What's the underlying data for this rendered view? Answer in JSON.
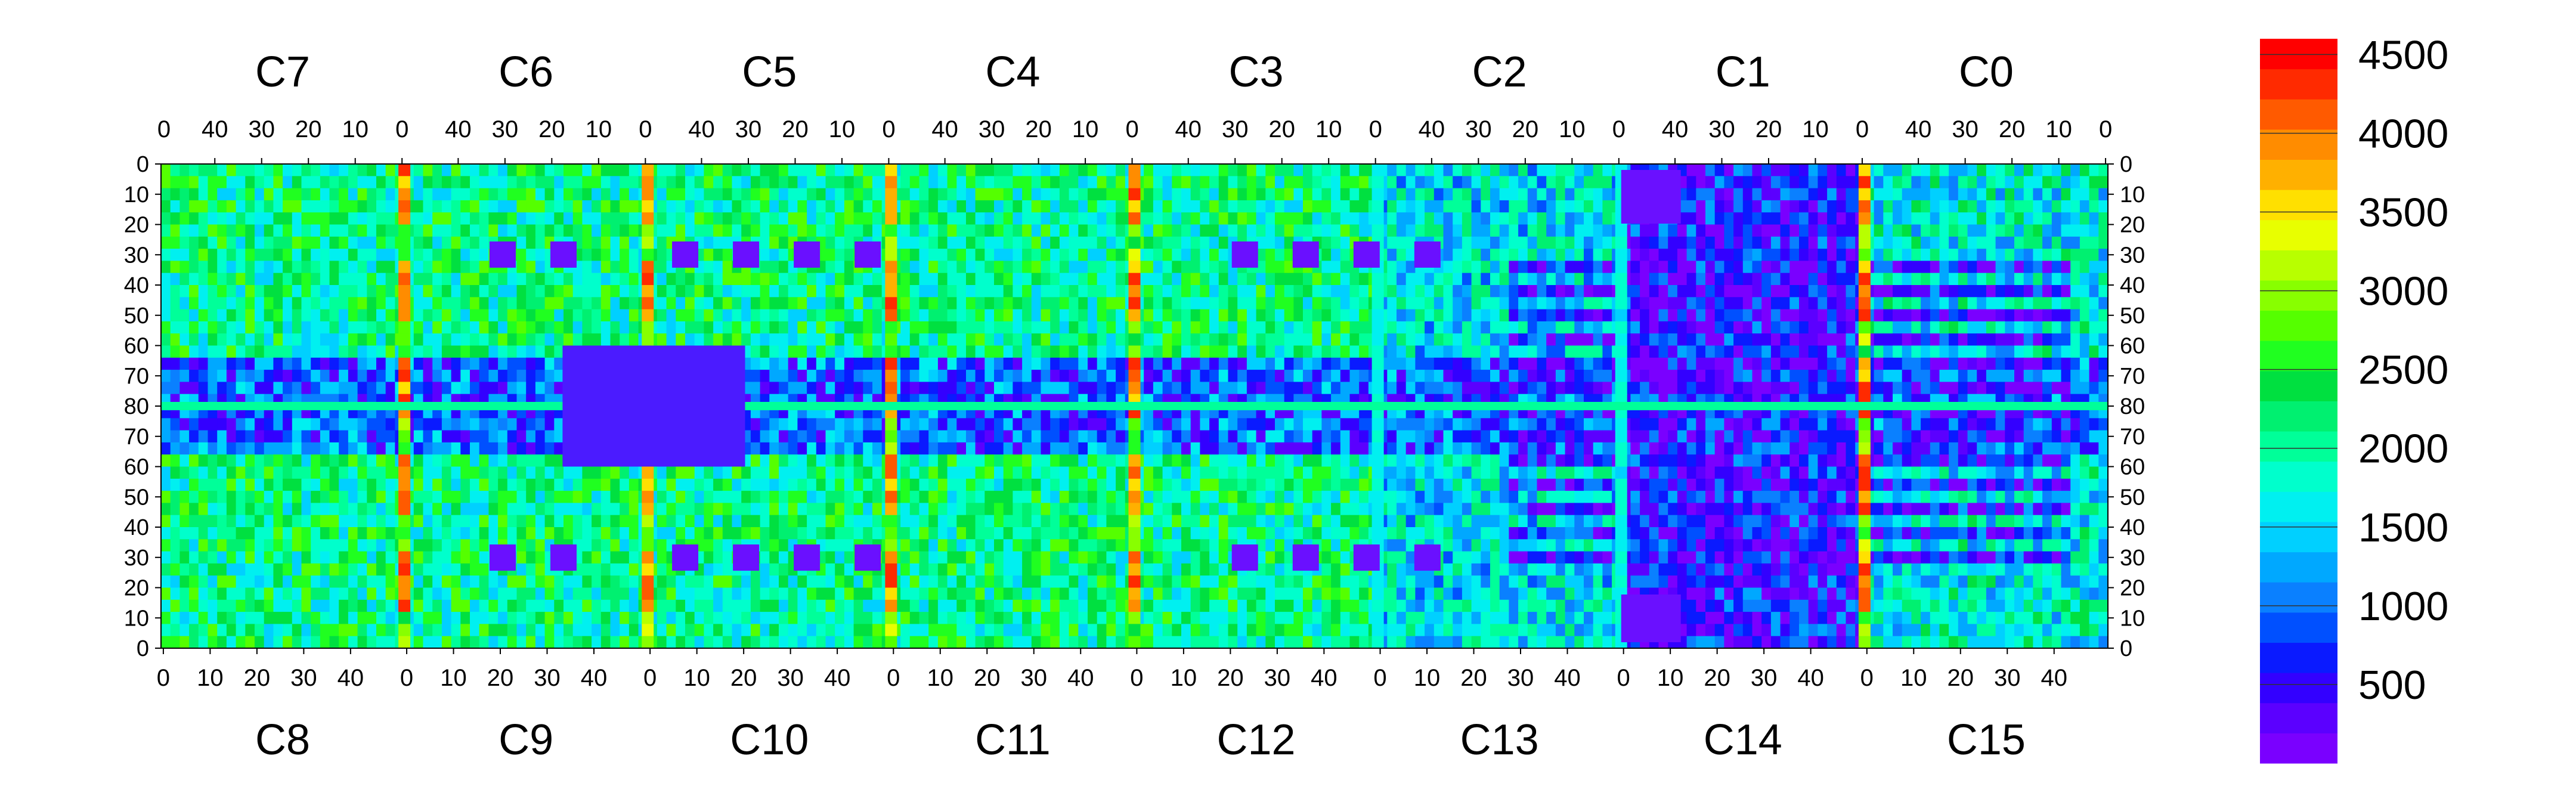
{
  "chart_data": {
    "type": "heatmap",
    "title": "",
    "xlabel": "",
    "ylabel": "",
    "top_chips": [
      "C7",
      "C6",
      "C5",
      "C4",
      "C3",
      "C2",
      "C1",
      "C0"
    ],
    "bottom_chips": [
      "C8",
      "C9",
      "C10",
      "C11",
      "C12",
      "C13",
      "C14",
      "C15"
    ],
    "top_axis_ticks": [
      40,
      30,
      20,
      10,
      0
    ],
    "bottom_axis_ticks": [
      0,
      10,
      20,
      30,
      40
    ],
    "y_axis_ticks_left": [
      0,
      10,
      20,
      30,
      40,
      50,
      60,
      70,
      80,
      70,
      60,
      50,
      40,
      30,
      20,
      10,
      0
    ],
    "y_axis_ticks_right": [
      0,
      10,
      20,
      30,
      40,
      50,
      60,
      70,
      80,
      70,
      60,
      50,
      40,
      30,
      20,
      10,
      0
    ],
    "columns_per_chip": 52,
    "rows_per_half": 80,
    "zlim": [
      0,
      4600
    ],
    "colorbar_ticks": [
      500,
      1000,
      1500,
      2000,
      2500,
      3000,
      3500,
      4000,
      4500
    ],
    "colorbar_colors": [
      "#7a00ff",
      "#5b00ff",
      "#3300ff",
      "#0a1aff",
      "#0050ff",
      "#0a80ff",
      "#00a8ff",
      "#00d0ff",
      "#00f0f0",
      "#00ffcc",
      "#00ff99",
      "#00f070",
      "#00e040",
      "#20ff20",
      "#55ff00",
      "#88ff00",
      "#b8ff00",
      "#e8ff00",
      "#ffe000",
      "#ffb000",
      "#ff8c00",
      "#ff5a00",
      "#ff2a00",
      "#ff0000"
    ],
    "chip_descriptions": {
      "C8_C7": "column 0 boundary columns with counts above 4000, broad low-count band around rows 60-80 of the bottom half",
      "C14_C1": "dense horizontal low-count stripes on the right portion; low-count blocks at top and bottom near column 0",
      "C13_C2": "left portion striped low-count region, high counts at column 0 boundary"
    }
  }
}
